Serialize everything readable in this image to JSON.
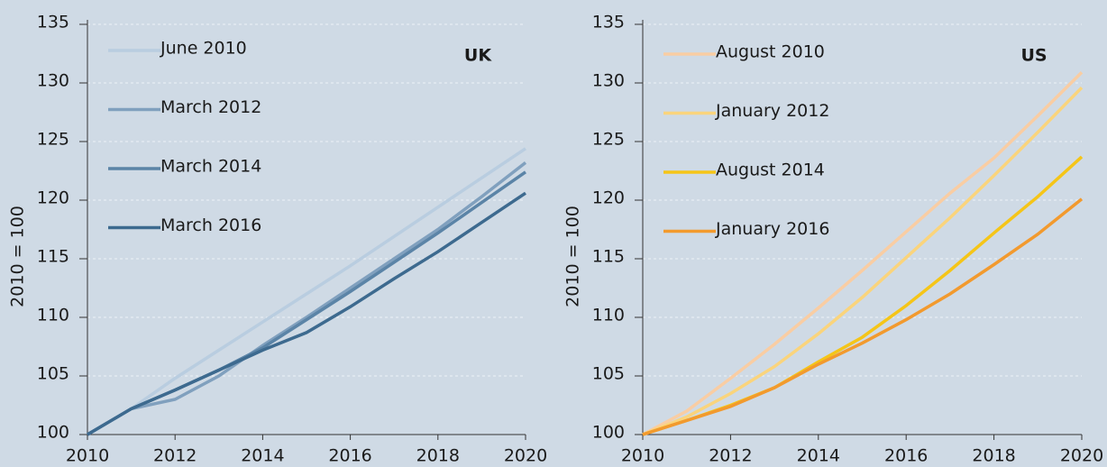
{
  "chart_data": [
    {
      "type": "line",
      "annotation": "UK",
      "ylabel": "2010 = 100",
      "x": [
        2010,
        2011,
        2012,
        2013,
        2014,
        2015,
        2016,
        2017,
        2018,
        2019,
        2020
      ],
      "series": [
        {
          "name": "June 2010",
          "color": "#b9cde0",
          "values": [
            100,
            102.2,
            104.8,
            107.2,
            109.6,
            112,
            114.4,
            116.9,
            119.4,
            121.9,
            124.4
          ]
        },
        {
          "name": "March 2012",
          "color": "#80a0be",
          "values": [
            100,
            102.2,
            103,
            105,
            107.6,
            110,
            112.5,
            115,
            117.5,
            120.3,
            123.2
          ]
        },
        {
          "name": "March 2014",
          "color": "#5b84a7",
          "values": [
            100,
            102.2,
            103.8,
            105.5,
            107.4,
            109.8,
            112.2,
            114.7,
            117.2,
            119.8,
            122.4
          ]
        },
        {
          "name": "March 2016",
          "color": "#3d6a8f",
          "values": [
            100,
            102.2,
            103.8,
            105.5,
            107.2,
            108.7,
            110.9,
            113.3,
            115.6,
            118.1,
            120.6
          ]
        }
      ],
      "xlim": [
        2010,
        2020
      ],
      "ylim": [
        100,
        135
      ],
      "xticks": [
        2010,
        2012,
        2014,
        2016,
        2018,
        2020
      ],
      "yticks": [
        100,
        105,
        110,
        115,
        120,
        125,
        130,
        135
      ],
      "grid": true,
      "legend": "upper left"
    },
    {
      "type": "line",
      "annotation": "US",
      "ylabel": "2010 = 100",
      "x": [
        2010,
        2011,
        2012,
        2013,
        2014,
        2015,
        2016,
        2017,
        2018,
        2019,
        2020
      ],
      "series": [
        {
          "name": "August 2010",
          "color": "#f9cda3",
          "values": [
            100,
            102,
            104.8,
            107.7,
            110.8,
            114,
            117.3,
            120.6,
            123.6,
            127.2,
            130.9
          ]
        },
        {
          "name": "January 2012",
          "color": "#fad47c",
          "values": [
            100,
            101.5,
            103.5,
            105.8,
            108.6,
            111.7,
            115.1,
            118.5,
            122.1,
            125.8,
            129.6
          ]
        },
        {
          "name": "August 2014",
          "color": "#f5c518",
          "values": [
            100,
            101.2,
            102.5,
            104,
            106.2,
            108.3,
            111,
            114,
            117.2,
            120.3,
            123.7
          ]
        },
        {
          "name": "January 2016",
          "color": "#f29a2e",
          "values": [
            100,
            101.2,
            102.4,
            104,
            106,
            107.8,
            109.8,
            112,
            114.5,
            117.1,
            120.1
          ]
        }
      ],
      "xlim": [
        2010,
        2020
      ],
      "ylim": [
        100,
        135
      ],
      "xticks": [
        2010,
        2012,
        2014,
        2016,
        2018,
        2020
      ],
      "yticks": [
        100,
        105,
        110,
        115,
        120,
        125,
        130,
        135
      ],
      "grid": true,
      "legend": "upper left"
    }
  ]
}
